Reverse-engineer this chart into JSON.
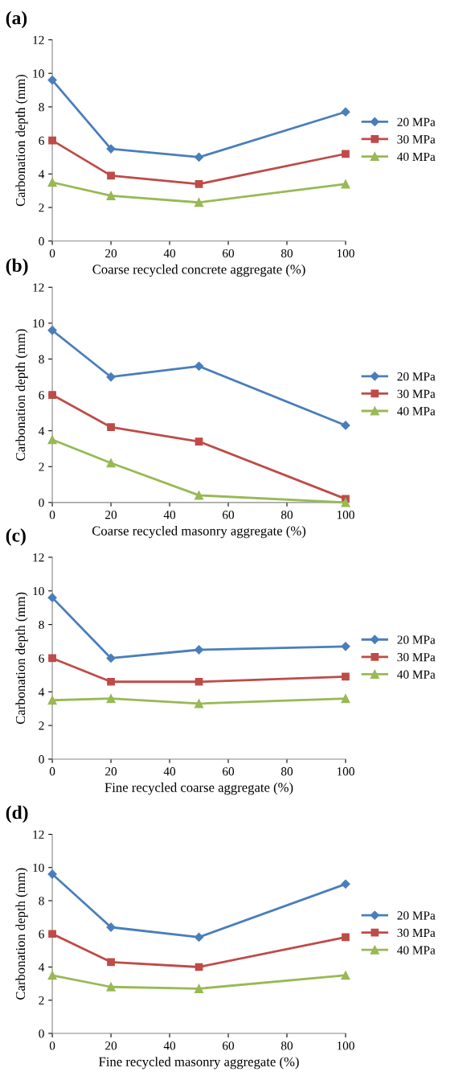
{
  "chart_data": [
    {
      "type": "line",
      "title": "(a)",
      "xlabel": "Coarse recycled concrete aggregate (%)",
      "ylabel": "Carbonation depth (mm)",
      "x": [
        0,
        20,
        50,
        100
      ],
      "xlim": [
        0,
        100
      ],
      "xticks": [
        0,
        20,
        40,
        60,
        80,
        100
      ],
      "ylim": [
        0,
        12
      ],
      "yticks": [
        0,
        2,
        4,
        6,
        8,
        10,
        12
      ],
      "grid": false,
      "legend": "right",
      "series": [
        {
          "name": "20 MPa",
          "color": "#4a7ebb",
          "marker": "diamond",
          "values": [
            9.6,
            5.5,
            5.0,
            7.7
          ]
        },
        {
          "name": "30 MPa",
          "color": "#be4b48",
          "marker": "square",
          "values": [
            6.0,
            3.9,
            3.4,
            5.2
          ]
        },
        {
          "name": "40 MPa",
          "color": "#98b954",
          "marker": "triangle",
          "values": [
            3.5,
            2.7,
            2.3,
            3.4
          ]
        }
      ]
    },
    {
      "type": "line",
      "title": "(b)",
      "xlabel": "Coarse recycled masonry aggregate (%)",
      "ylabel": "Carbonation depth (mm)",
      "x": [
        0,
        20,
        50,
        100
      ],
      "xlim": [
        0,
        100
      ],
      "xticks": [
        0,
        20,
        40,
        60,
        80,
        100
      ],
      "ylim": [
        0,
        12
      ],
      "yticks": [
        0,
        2,
        4,
        6,
        8,
        10,
        12
      ],
      "grid": false,
      "legend": "right",
      "series": [
        {
          "name": "20 MPa",
          "color": "#4a7ebb",
          "marker": "diamond",
          "values": [
            9.6,
            7.0,
            7.6,
            4.3
          ]
        },
        {
          "name": "30 MPa",
          "color": "#be4b48",
          "marker": "square",
          "values": [
            6.0,
            4.2,
            3.4,
            0.2
          ]
        },
        {
          "name": "40 MPa",
          "color": "#98b954",
          "marker": "triangle",
          "values": [
            3.5,
            2.2,
            0.4,
            0.0
          ]
        }
      ]
    },
    {
      "type": "line",
      "title": "(c)",
      "xlabel": "Fine recycled coarse aggregate (%)",
      "ylabel": "Carbonation depth (mm)",
      "x": [
        0,
        20,
        50,
        100
      ],
      "xlim": [
        0,
        100
      ],
      "xticks": [
        0,
        20,
        40,
        60,
        80,
        100
      ],
      "ylim": [
        0,
        12
      ],
      "yticks": [
        0,
        2,
        4,
        6,
        8,
        10,
        12
      ],
      "grid": false,
      "legend": "right",
      "series": [
        {
          "name": "20 MPa",
          "color": "#4a7ebb",
          "marker": "diamond",
          "values": [
            9.6,
            6.0,
            6.5,
            6.7
          ]
        },
        {
          "name": "30 MPa",
          "color": "#be4b48",
          "marker": "square",
          "values": [
            6.0,
            4.6,
            4.6,
            4.9
          ]
        },
        {
          "name": "40 MPa",
          "color": "#98b954",
          "marker": "triangle",
          "values": [
            3.5,
            3.6,
            3.3,
            3.6
          ]
        }
      ]
    },
    {
      "type": "line",
      "title": "(d)",
      "xlabel": "Fine recycled masonry aggregate (%)",
      "ylabel": "Carbonation depth (mm)",
      "x": [
        0,
        20,
        50,
        100
      ],
      "xlim": [
        0,
        100
      ],
      "xticks": [
        0,
        20,
        40,
        60,
        80,
        100
      ],
      "ylim": [
        0,
        12
      ],
      "yticks": [
        0,
        2,
        4,
        6,
        8,
        10,
        12
      ],
      "grid": false,
      "legend": "right",
      "series": [
        {
          "name": "20 MPa",
          "color": "#4a7ebb",
          "marker": "diamond",
          "values": [
            9.6,
            6.4,
            5.8,
            9.0
          ]
        },
        {
          "name": "30 MPa",
          "color": "#be4b48",
          "marker": "square",
          "values": [
            6.0,
            4.3,
            4.0,
            5.8
          ]
        },
        {
          "name": "40 MPa",
          "color": "#98b954",
          "marker": "triangle",
          "values": [
            3.5,
            2.8,
            2.7,
            3.5
          ]
        }
      ]
    }
  ]
}
